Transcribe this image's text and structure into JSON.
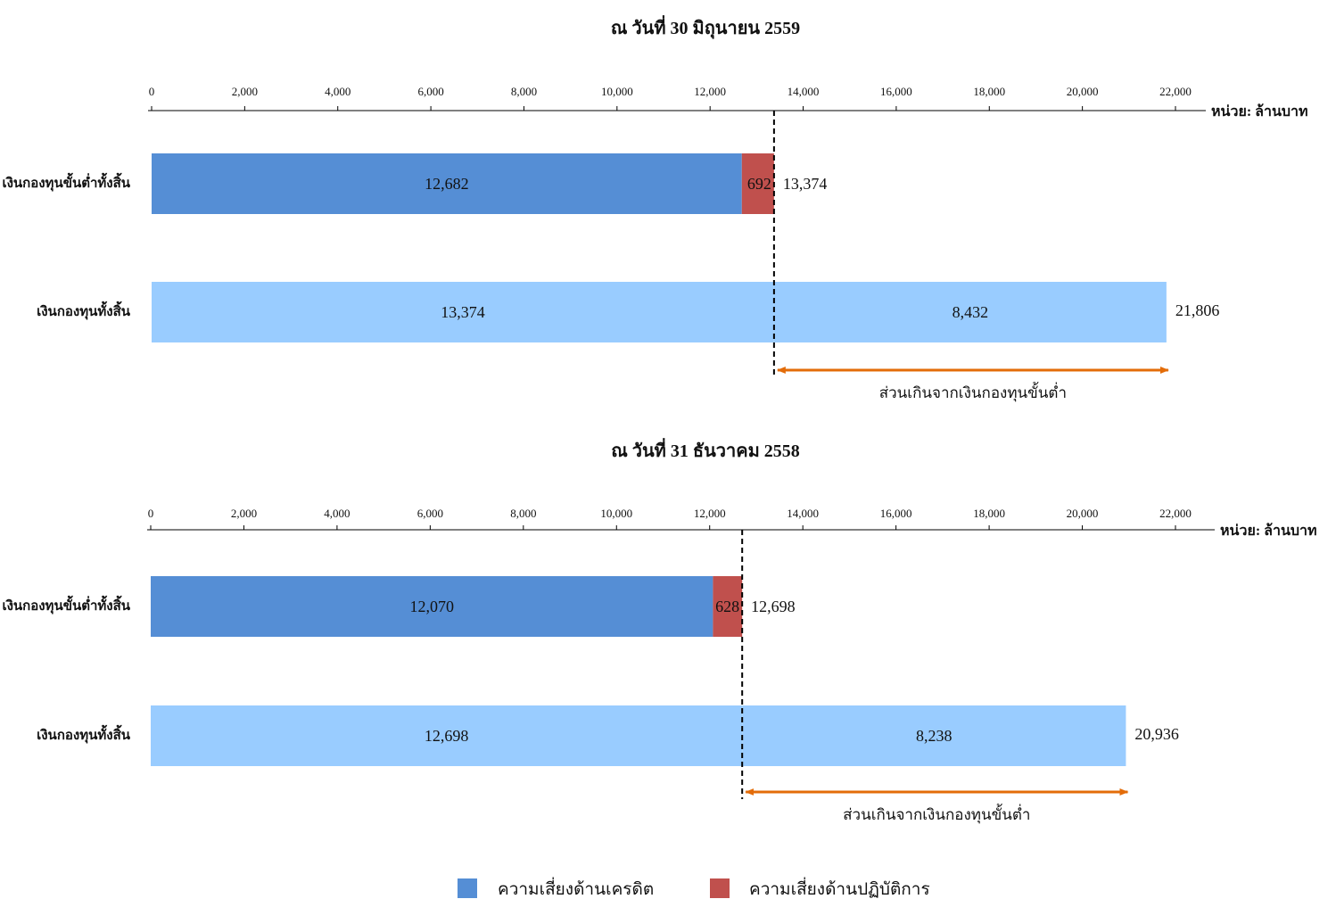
{
  "colors": {
    "credit_risk": "#558ed5",
    "operational_risk": "#c0504d",
    "total_fund": "#99ccff",
    "arrow": "#e36c09",
    "axis": "#000000"
  },
  "chart_data": [
    {
      "type": "bar",
      "orientation": "horizontal",
      "stacked": true,
      "title": "ณ วันที่ 30 มิถุนายน 2559",
      "unit_label": "หน่วย: ล้านบาท",
      "xlim": [
        0,
        22000
      ],
      "xticks": [
        "0",
        "2,000",
        "4,000",
        "6,000",
        "8,000",
        "10,000",
        "12,000",
        "14,000",
        "16,000",
        "18,000",
        "20,000",
        "22,000"
      ],
      "grid": false,
      "rows": [
        {
          "label": "เงินกองทุนขั้นต่ำทั้งสิ้น",
          "segments": [
            {
              "series": "credit",
              "value": 12682,
              "label": "12,682"
            },
            {
              "series": "operational",
              "value": 692,
              "label": "692"
            }
          ],
          "total_label": "13,374"
        },
        {
          "label": "เงินกองทุนทั้งสิ้น",
          "segments": [
            {
              "series": "total",
              "value": 13374,
              "label": "13,374"
            },
            {
              "series": "total",
              "value": 8432,
              "label": "8,432"
            }
          ],
          "total_label": "21,806"
        }
      ],
      "reference_line": 13374,
      "excess": {
        "from": 13374,
        "to": 21806,
        "label": "ส่วนเกินจากเงินกองทุนขั้นต่ำ"
      }
    },
    {
      "type": "bar",
      "orientation": "horizontal",
      "stacked": true,
      "title": "ณ วันที่ 31 ธันวาคม 2558",
      "unit_label": "หน่วย: ล้านบาท",
      "xlim": [
        0,
        22000
      ],
      "xticks": [
        "0",
        "2,000",
        "4,000",
        "6,000",
        "8,000",
        "10,000",
        "12,000",
        "14,000",
        "16,000",
        "18,000",
        "20,000",
        "22,000"
      ],
      "grid": false,
      "rows": [
        {
          "label": "เงินกองทุนขั้นต่ำทั้งสิ้น",
          "segments": [
            {
              "series": "credit",
              "value": 12070,
              "label": "12,070"
            },
            {
              "series": "operational",
              "value": 628,
              "label": "628"
            }
          ],
          "total_label": "12,698"
        },
        {
          "label": "เงินกองทุนทั้งสิ้น",
          "segments": [
            {
              "series": "total",
              "value": 12698,
              "label": "12,698"
            },
            {
              "series": "total",
              "value": 8238,
              "label": "8,238"
            }
          ],
          "total_label": "20,936"
        }
      ],
      "reference_line": 12698,
      "excess": {
        "from": 12698,
        "to": 20936,
        "label": "ส่วนเกินจากเงินกองทุนขั้นต่ำ"
      }
    }
  ],
  "legend": [
    {
      "series": "credit",
      "label": "ความเสี่ยงด้านเครดิต"
    },
    {
      "series": "operational",
      "label": "ความเสี่ยงด้านปฏิบัติการ"
    }
  ]
}
